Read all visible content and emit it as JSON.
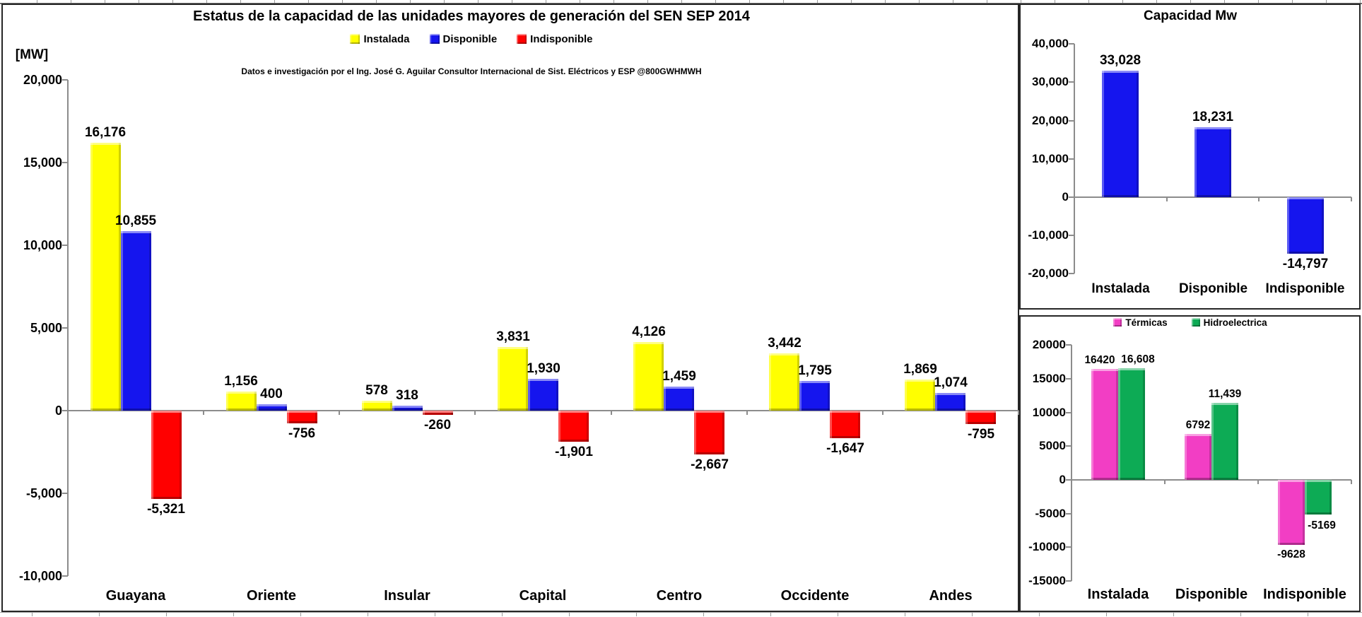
{
  "chart_data": [
    {
      "type": "bar",
      "title": "Estatus de la capacidad de las unidades mayores de generación del SEN SEP 2014",
      "subtitle": "Datos e investigación por el Ing. José G. Aguilar Consultor Internacional de Sist. Eléctricos y ESP @800GWHMWH",
      "ylabel": "[MW]",
      "categories": [
        "Guayana",
        "Oriente",
        "Insular",
        "Capital",
        "Centro",
        "Occidente",
        "Andes"
      ],
      "series": [
        {
          "name": "Instalada",
          "color": "#FFFF00",
          "values": [
            16176,
            1156,
            578,
            3831,
            4126,
            3442,
            1869
          ],
          "labels": [
            "16,176",
            "1,156",
            "578",
            "3,831",
            "4,126",
            "3,442",
            "1,869"
          ]
        },
        {
          "name": "Disponible",
          "color": "#1515EE",
          "values": [
            10855,
            400,
            318,
            1930,
            1459,
            1795,
            1074
          ],
          "labels": [
            "10,855",
            "400",
            "318",
            "1,930",
            "1,459",
            "1,795",
            "1,074"
          ]
        },
        {
          "name": "Indisponible",
          "color": "#FF0000",
          "values": [
            -5321,
            -756,
            -260,
            -1901,
            -2667,
            -1647,
            -795
          ],
          "labels": [
            "-5,321",
            "-756",
            "-260",
            "-1,901",
            "-2,667",
            "-1,647",
            "-795"
          ]
        }
      ],
      "ylim": [
        -10000,
        20000
      ],
      "ytick_step": 5000,
      "y_ticks": [
        "20,000",
        "15,000",
        "10,000",
        "5,000",
        "0",
        "-5,000",
        "-10,000"
      ],
      "legend_position": "top",
      "grid": false
    },
    {
      "type": "bar",
      "title": "Capacidad Mw",
      "categories": [
        "Instalada",
        "Disponible",
        "Indisponible"
      ],
      "series": [
        {
          "name": "Capacidad Mw",
          "color": "#1515EE",
          "values": [
            33028,
            18231,
            -14797
          ],
          "labels": [
            "33,028",
            "18,231",
            "-14,797"
          ]
        }
      ],
      "ylim": [
        -20000,
        40000
      ],
      "ytick_step": 10000,
      "y_ticks": [
        "40,000",
        "30,000",
        "20,000",
        "10,000",
        "0",
        "-10,000",
        "-20,000"
      ],
      "legend_position": "none",
      "grid": false
    },
    {
      "type": "bar",
      "title": "",
      "categories": [
        "Instalada",
        "Disponible",
        "Indisponible"
      ],
      "series": [
        {
          "name": "Térmicas",
          "color": "#F23EC4",
          "values": [
            16420,
            6792,
            -9628
          ],
          "labels": [
            "16420",
            "6792",
            "-9628"
          ]
        },
        {
          "name": "Hidroelectrica",
          "color": "#0DAB55",
          "values": [
            16608,
            11439,
            -5169
          ],
          "labels": [
            "16,608",
            "11,439",
            "-5169"
          ]
        }
      ],
      "ylim": [
        -15000,
        20000
      ],
      "ytick_step": 5000,
      "y_ticks": [
        "20000",
        "15000",
        "10000",
        "5000",
        "0",
        "-5000",
        "-10000",
        "-15000"
      ],
      "legend_position": "top",
      "grid": false
    }
  ]
}
